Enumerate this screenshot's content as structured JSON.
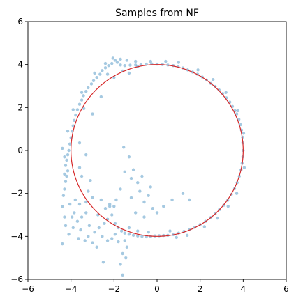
{
  "chart_data": {
    "type": "scatter",
    "title": "Samples from NF",
    "xlabel": "",
    "ylabel": "",
    "xlim": [
      -6,
      6
    ],
    "ylim": [
      -6,
      6
    ],
    "xticks": [
      -6,
      -4,
      -2,
      0,
      2,
      4,
      6
    ],
    "yticks": [
      -6,
      -4,
      -2,
      0,
      2,
      4,
      6
    ],
    "xtick_labels": [
      "−6",
      "−4",
      "−2",
      "0",
      "2",
      "4",
      "6"
    ],
    "ytick_labels": [
      "−6",
      "−4",
      "−2",
      "0",
      "2",
      "4",
      "6"
    ],
    "grid": false,
    "legend": "none",
    "series": [
      {
        "kind": "points",
        "color": "#1f77b4",
        "alpha": 0.4,
        "points": [
          [
            4.0,
            0.0
          ],
          [
            3.98,
            0.35
          ],
          [
            3.97,
            0.62
          ],
          [
            3.92,
            0.95
          ],
          [
            3.88,
            1.2
          ],
          [
            3.8,
            1.45
          ],
          [
            3.7,
            1.7
          ],
          [
            3.62,
            1.85
          ],
          [
            3.5,
            2.05
          ],
          [
            3.38,
            2.25
          ],
          [
            3.22,
            2.45
          ],
          [
            3.05,
            2.65
          ],
          [
            2.88,
            2.82
          ],
          [
            2.7,
            2.98
          ],
          [
            2.5,
            3.12
          ],
          [
            2.3,
            3.28
          ],
          [
            2.1,
            3.42
          ],
          [
            1.88,
            3.55
          ],
          [
            1.65,
            3.65
          ],
          [
            1.42,
            3.75
          ],
          [
            1.2,
            3.84
          ],
          [
            0.98,
            3.9
          ],
          [
            0.75,
            3.95
          ],
          [
            0.5,
            3.98
          ],
          [
            0.25,
            4.0
          ],
          [
            0.0,
            4.02
          ],
          [
            -0.25,
            4.03
          ],
          [
            -0.5,
            4.02
          ],
          [
            -0.75,
            4.0
          ],
          [
            -1.0,
            3.98
          ],
          [
            -1.25,
            3.97
          ],
          [
            -1.5,
            3.95
          ],
          [
            -1.7,
            3.98
          ],
          [
            -1.85,
            4.1
          ],
          [
            -1.7,
            4.25
          ],
          [
            -1.95,
            4.2
          ],
          [
            -2.1,
            4.05
          ],
          [
            -2.25,
            3.95
          ],
          [
            -2.4,
            3.85
          ],
          [
            -2.55,
            3.72
          ],
          [
            -2.65,
            3.55
          ],
          [
            -2.8,
            3.4
          ],
          [
            -2.95,
            3.25
          ],
          [
            -3.05,
            3.1
          ],
          [
            -3.2,
            2.92
          ],
          [
            -3.3,
            2.75
          ],
          [
            -3.42,
            2.55
          ],
          [
            -3.5,
            2.35
          ],
          [
            -3.6,
            2.15
          ],
          [
            -3.7,
            1.9
          ],
          [
            -3.78,
            1.65
          ],
          [
            -3.85,
            1.4
          ],
          [
            -3.9,
            1.15
          ],
          [
            -3.95,
            0.9
          ],
          [
            -4.0,
            0.6
          ],
          [
            -4.05,
            0.3
          ],
          [
            -4.1,
            0.0
          ],
          [
            -4.15,
            -0.2
          ],
          [
            -4.2,
            -0.45
          ],
          [
            -4.25,
            -0.7
          ],
          [
            -4.15,
            -0.95
          ],
          [
            -4.2,
            -1.2
          ],
          [
            -4.25,
            -1.45
          ],
          [
            -4.3,
            -1.8
          ],
          [
            -4.35,
            -2.1
          ],
          [
            -4.4,
            -2.6
          ],
          [
            -4.3,
            -3.1
          ],
          [
            -4.25,
            -3.5
          ],
          [
            -4.4,
            -4.35
          ],
          [
            -4.1,
            -3.9
          ],
          [
            -3.9,
            -3.6
          ],
          [
            -3.7,
            -3.3
          ],
          [
            -3.5,
            -3.1
          ],
          [
            -3.3,
            -2.9
          ],
          [
            -3.6,
            -2.5
          ],
          [
            -3.8,
            -2.3
          ],
          [
            -3.85,
            -2.9
          ],
          [
            -3.65,
            -4.1
          ],
          [
            -3.2,
            -4.0
          ],
          [
            -3.0,
            -4.3
          ],
          [
            -2.8,
            -4.5
          ],
          [
            -2.9,
            -3.8
          ],
          [
            -2.7,
            -3.6
          ],
          [
            -2.55,
            -4.0
          ],
          [
            -2.3,
            -4.2
          ],
          [
            -2.1,
            -4.1
          ],
          [
            -2.5,
            -5.2
          ],
          [
            -2.3,
            -3.2
          ],
          [
            -2.1,
            -3.0
          ],
          [
            -2.4,
            -2.7
          ],
          [
            -2.2,
            -2.5
          ],
          [
            -2.0,
            -2.6
          ],
          [
            -1.95,
            -3.4
          ],
          [
            -1.8,
            -3.6
          ],
          [
            -1.65,
            -3.75
          ],
          [
            -1.5,
            -3.85
          ],
          [
            -1.3,
            -3.9
          ],
          [
            -1.1,
            -3.95
          ],
          [
            -0.9,
            -3.98
          ],
          [
            -0.7,
            -4.0
          ],
          [
            -0.5,
            -4.02
          ],
          [
            -0.3,
            -4.0
          ],
          [
            -0.1,
            -3.98
          ],
          [
            0.1,
            -3.97
          ],
          [
            0.3,
            -3.96
          ],
          [
            0.5,
            -3.95
          ],
          [
            0.75,
            -3.92
          ],
          [
            1.0,
            -3.85
          ],
          [
            1.25,
            -3.77
          ],
          [
            1.5,
            -3.68
          ],
          [
            1.75,
            -3.58
          ],
          [
            2.0,
            -3.45
          ],
          [
            2.25,
            -3.3
          ],
          [
            2.5,
            -3.12
          ],
          [
            2.7,
            -2.95
          ],
          [
            2.9,
            -2.75
          ],
          [
            3.1,
            -2.55
          ],
          [
            3.28,
            -2.32
          ],
          [
            3.45,
            -2.05
          ],
          [
            3.6,
            -1.78
          ],
          [
            3.72,
            -1.5
          ],
          [
            3.82,
            -1.2
          ],
          [
            3.9,
            -0.9
          ],
          [
            3.95,
            -0.6
          ],
          [
            3.98,
            -0.3
          ],
          [
            -1.4,
            -4.5
          ],
          [
            -1.6,
            -4.8
          ],
          [
            -1.45,
            -5.0
          ],
          [
            -1.7,
            -5.3
          ],
          [
            -1.6,
            -5.8
          ],
          [
            -1.5,
            -4.2
          ],
          [
            -1.55,
            0.15
          ],
          [
            -1.3,
            -0.3
          ],
          [
            -1.1,
            -0.9
          ],
          [
            -1.5,
            -1.0
          ],
          [
            -1.2,
            -1.3
          ],
          [
            -0.9,
            -1.5
          ],
          [
            -0.7,
            -1.2
          ],
          [
            -0.8,
            -1.9
          ],
          [
            -1.2,
            -2.2
          ],
          [
            -0.6,
            -2.4
          ],
          [
            -0.4,
            -2.1
          ],
          [
            -0.2,
            -2.7
          ],
          [
            0.0,
            -2.9
          ],
          [
            0.3,
            -2.6
          ],
          [
            0.7,
            -2.3
          ],
          [
            1.2,
            -2.0
          ],
          [
            1.5,
            -2.3
          ],
          [
            -1.0,
            -2.9
          ],
          [
            -0.6,
            -3.1
          ],
          [
            -0.3,
            -1.7
          ],
          [
            -1.7,
            -1.8
          ],
          [
            -1.9,
            -2.3
          ],
          [
            -2.2,
            -2.6
          ],
          [
            -2.6,
            -2.3
          ],
          [
            -3.0,
            -2.2
          ],
          [
            -3.3,
            -2.4
          ],
          [
            -3.2,
            -1.9
          ],
          [
            -3.1,
            -1.4
          ],
          [
            -3.5,
            -1.2
          ],
          [
            -3.6,
            -0.8
          ],
          [
            -3.3,
            -0.2
          ],
          [
            -3.0,
            1.7
          ],
          [
            -2.6,
            2.5
          ],
          [
            -2.0,
            3.4
          ],
          [
            -1.3,
            3.6
          ],
          [
            -0.9,
            3.9
          ],
          [
            -1.6,
            3.7
          ],
          [
            -2.3,
            3.55
          ],
          [
            -3.4,
            1.95
          ],
          [
            -3.6,
            0.35
          ],
          [
            -4.3,
            -0.3
          ],
          [
            -4.4,
            0.1
          ],
          [
            -4.05,
            -2.5
          ],
          [
            -3.95,
            -3.1
          ],
          [
            -3.55,
            -3.7
          ],
          [
            -3.35,
            -4.2
          ],
          [
            -3.15,
            -3.5
          ],
          [
            -2.75,
            -3.0
          ],
          [
            -2.45,
            -3.4
          ],
          [
            -1.95,
            -3.9
          ],
          [
            -1.8,
            -4.25
          ],
          [
            -1.3,
            -3.6
          ],
          [
            -0.9,
            -3.75
          ],
          [
            -0.4,
            -3.8
          ],
          [
            0.6,
            -3.75
          ],
          [
            0.9,
            -4.05
          ],
          [
            1.4,
            -3.95
          ],
          [
            2.2,
            -3.55
          ],
          [
            2.8,
            -3.15
          ],
          [
            3.3,
            -2.6
          ],
          [
            3.7,
            -2.0
          ],
          [
            4.05,
            -0.8
          ],
          [
            4.02,
            0.8
          ],
          [
            3.75,
            1.85
          ],
          [
            3.2,
            2.7
          ],
          [
            2.6,
            3.3
          ],
          [
            1.9,
            3.75
          ],
          [
            1.0,
            4.1
          ],
          [
            0.4,
            4.15
          ],
          [
            -0.3,
            4.15
          ],
          [
            -1.0,
            4.15
          ],
          [
            -1.4,
            4.2
          ],
          [
            -2.05,
            4.3
          ],
          [
            -2.4,
            4.05
          ],
          [
            -2.9,
            3.6
          ],
          [
            -3.5,
            2.7
          ],
          [
            -3.9,
            1.9
          ],
          [
            -4.15,
            0.9
          ],
          [
            -4.3,
            -1.1
          ]
        ]
      },
      {
        "kind": "circle",
        "color": "#d62728",
        "center": [
          0,
          0
        ],
        "radius": 4
      }
    ]
  }
}
